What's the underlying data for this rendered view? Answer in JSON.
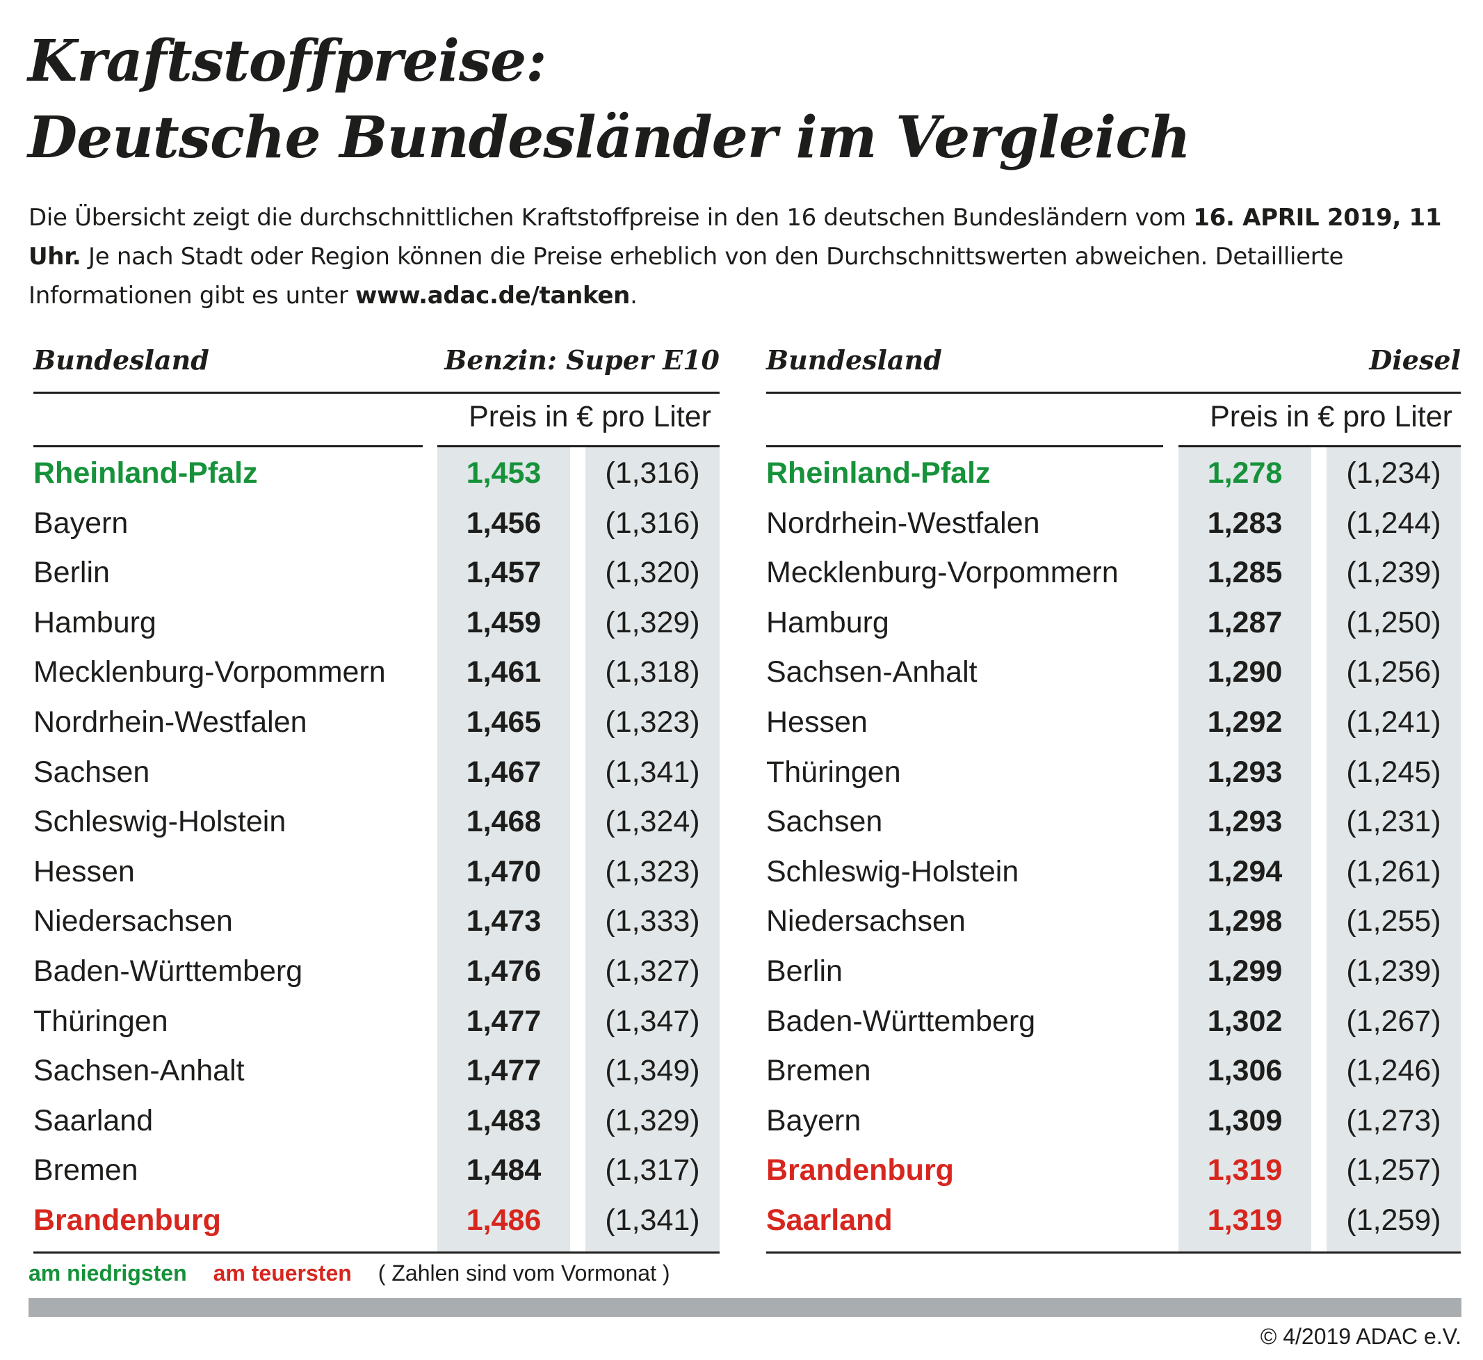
{
  "title": {
    "line1": "Kraftstoffpreise:",
    "line2": "Deutsche Bundesländer im Vergleich"
  },
  "intro": {
    "part1": "Die Übersicht zeigt die durchschnittlichen Kraftstoffpreise in den 16 deutschen Bundesländern vom ",
    "date_bold": "16. APRIL 2019, 11 Uhr.",
    "part2": " Je nach Stadt oder Region können die Preise erheblich von den Durchschnittswerten abweichen. Detaillierte Informationen gibt es unter ",
    "link": "www.adac.de/tanken",
    "part3": "."
  },
  "colors": {
    "lowest": "#16923a",
    "highest": "#d7261e",
    "column_bg": "#e1e6e8",
    "bar": "#a9adb0"
  },
  "tables": [
    {
      "header_name": "Bundesland",
      "header_fuel": "Benzin:  Super E10",
      "unit": "Preis in € pro Liter",
      "rows": [
        {
          "name": "Rheinland-Pfalz",
          "price": "1,453",
          "prev": "(1,316)",
          "mark": "lowest"
        },
        {
          "name": "Bayern",
          "price": "1,456",
          "prev": "(1,316)"
        },
        {
          "name": "Berlin",
          "price": "1,457",
          "prev": "(1,320)"
        },
        {
          "name": "Hamburg",
          "price": "1,459",
          "prev": "(1,329)"
        },
        {
          "name": "Mecklenburg-Vorpommern",
          "price": "1,461",
          "prev": "(1,318)"
        },
        {
          "name": "Nordrhein-Westfalen",
          "price": "1,465",
          "prev": "(1,323)"
        },
        {
          "name": "Sachsen",
          "price": "1,467",
          "prev": "(1,341)"
        },
        {
          "name": "Schleswig-Holstein",
          "price": "1,468",
          "prev": "(1,324)"
        },
        {
          "name": "Hessen",
          "price": "1,470",
          "prev": "(1,323)"
        },
        {
          "name": "Niedersachsen",
          "price": "1,473",
          "prev": "(1,333)"
        },
        {
          "name": "Baden-Württemberg",
          "price": "1,476",
          "prev": "(1,327)"
        },
        {
          "name": "Thüringen",
          "price": "1,477",
          "prev": "(1,347)"
        },
        {
          "name": "Sachsen-Anhalt",
          "price": "1,477",
          "prev": "(1,349)"
        },
        {
          "name": "Saarland",
          "price": "1,483",
          "prev": "(1,329)"
        },
        {
          "name": "Bremen",
          "price": "1,484",
          "prev": "(1,317)"
        },
        {
          "name": "Brandenburg",
          "price": "1,486",
          "prev": "(1,341)",
          "mark": "highest"
        }
      ]
    },
    {
      "header_name": "Bundesland",
      "header_fuel": "Diesel",
      "unit": "Preis in € pro Liter",
      "rows": [
        {
          "name": "Rheinland-Pfalz",
          "price": "1,278",
          "prev": "(1,234)",
          "mark": "lowest"
        },
        {
          "name": "Nordrhein-Westfalen",
          "price": "1,283",
          "prev": "(1,244)"
        },
        {
          "name": "Mecklenburg-Vorpommern",
          "price": "1,285",
          "prev": "(1,239)"
        },
        {
          "name": "Hamburg",
          "price": "1,287",
          "prev": "(1,250)"
        },
        {
          "name": "Sachsen-Anhalt",
          "price": "1,290",
          "prev": "(1,256)"
        },
        {
          "name": "Hessen",
          "price": "1,292",
          "prev": "(1,241)"
        },
        {
          "name": "Thüringen",
          "price": "1,293",
          "prev": "(1,245)"
        },
        {
          "name": "Sachsen",
          "price": "1,293",
          "prev": "(1,231)"
        },
        {
          "name": "Schleswig-Holstein",
          "price": "1,294",
          "prev": "(1,261)"
        },
        {
          "name": "Niedersachsen",
          "price": "1,298",
          "prev": "(1,255)"
        },
        {
          "name": "Berlin",
          "price": "1,299",
          "prev": "(1,239)"
        },
        {
          "name": "Baden-Württemberg",
          "price": "1,302",
          "prev": "(1,267)"
        },
        {
          "name": "Bremen",
          "price": "1,306",
          "prev": "(1,246)"
        },
        {
          "name": "Bayern",
          "price": "1,309",
          "prev": "(1,273)"
        },
        {
          "name": "Brandenburg",
          "price": "1,319",
          "prev": "(1,257)",
          "mark": "highest"
        },
        {
          "name": "Saarland",
          "price": "1,319",
          "prev": "(1,259)",
          "mark": "highest"
        }
      ]
    }
  ],
  "legend": {
    "lowest": "am niedrigsten",
    "highest": "am teuersten",
    "note": "( Zahlen sind vom Vormonat )"
  },
  "copyright": "© 4/2019 ADAC e.V."
}
